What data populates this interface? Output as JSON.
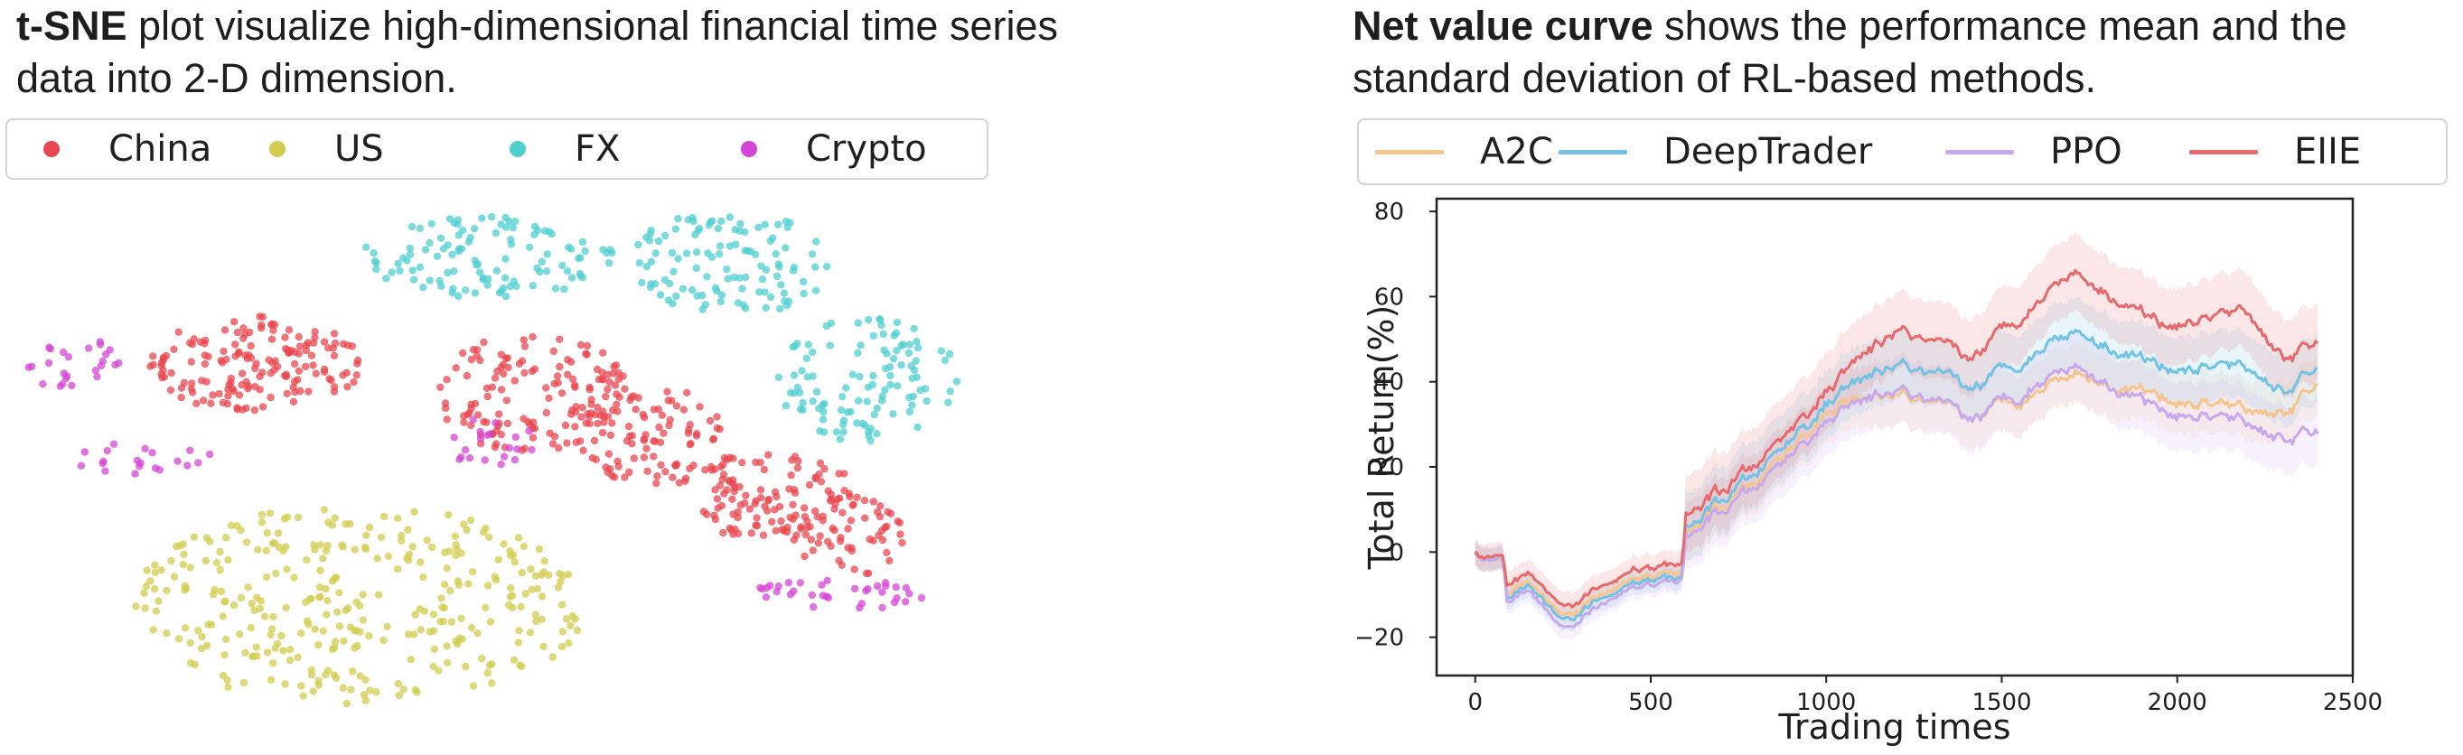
{
  "left_caption": {
    "bold": "t-SNE",
    "rest": " plot visualize high-dimensional financial time series data into 2-D dimension."
  },
  "right_caption": {
    "bold": "Net value curve",
    "rest": " shows the performance mean and the standard deviation of RL-based methods."
  },
  "chart_data": [
    {
      "type": "scatter",
      "title": "",
      "xlabel": "",
      "ylabel": "",
      "axes_visible": false,
      "legend_position": "top",
      "series": [
        {
          "name": "China",
          "color": "#e8474f",
          "clusters": [
            {
              "x": [
                160,
                400
              ],
              "y": [
                350,
                460
              ],
              "n": 160
            },
            {
              "x": [
                470,
                700
              ],
              "y": [
                370,
                500
              ],
              "n": 140
            },
            {
              "x": [
                640,
                820
              ],
              "y": [
                430,
                540
              ],
              "n": 90
            },
            {
              "x": [
                760,
                960
              ],
              "y": [
                500,
                600
              ],
              "n": 110
            },
            {
              "x": [
                880,
                1000
              ],
              "y": [
                550,
                640
              ],
              "n": 50
            }
          ]
        },
        {
          "name": "US",
          "color": "#d2cc4e",
          "clusters": [
            {
              "x": [
                140,
                650
              ],
              "y": [
                560,
                780
              ],
              "n": 330
            }
          ]
        },
        {
          "name": "FX",
          "color": "#4fcfd0",
          "clusters": [
            {
              "x": [
                400,
                680
              ],
              "y": [
                240,
                330
              ],
              "n": 110
            },
            {
              "x": [
                700,
                920
              ],
              "y": [
                230,
                350
              ],
              "n": 110
            },
            {
              "x": [
                850,
                1060
              ],
              "y": [
                350,
                490
              ],
              "n": 110
            }
          ]
        },
        {
          "name": "Crypto",
          "color": "#d444d4",
          "clusters": [
            {
              "x": [
                30,
                140
              ],
              "y": [
                370,
                440
              ],
              "n": 25
            },
            {
              "x": [
                80,
                240
              ],
              "y": [
                490,
                525
              ],
              "n": 20
            },
            {
              "x": [
                480,
                600
              ],
              "y": [
                460,
                520
              ],
              "n": 20
            },
            {
              "x": [
                830,
                1030
              ],
              "y": [
                640,
                675
              ],
              "n": 35
            }
          ]
        }
      ]
    },
    {
      "type": "line",
      "title": "",
      "xlabel": "Trading times",
      "ylabel": "Total Return(%)",
      "xlim": [
        -110,
        2500
      ],
      "ylim": [
        -29,
        83
      ],
      "xticks": [
        0,
        500,
        1000,
        1500,
        2000,
        2500
      ],
      "yticks": [
        -20,
        0,
        20,
        40,
        60,
        80
      ],
      "grid": false,
      "legend_position": "top",
      "series": [
        {
          "name": "A2C",
          "color": "#f6c58c",
          "std": 7,
          "x": [
            0,
            80,
            90,
            150,
            250,
            420,
            590,
            600,
            800,
            1000,
            1200,
            1400,
            1700,
            1950,
            2200,
            2300,
            2400
          ],
          "values": [
            0,
            -2,
            -10,
            -7,
            -15,
            -7,
            -5,
            4,
            16,
            33,
            37,
            30,
            43,
            37,
            33,
            33,
            38
          ]
        },
        {
          "name": "DeepTrader",
          "color": "#72c2e6",
          "std": 8,
          "x": [
            0,
            80,
            90,
            150,
            250,
            420,
            590,
            600,
            800,
            1000,
            1200,
            1400,
            1700,
            1950,
            2200,
            2300,
            2400
          ],
          "values": [
            0,
            -2,
            -11,
            -8,
            -16,
            -8,
            -6,
            5,
            18,
            35,
            44,
            37,
            53,
            44,
            43,
            38,
            42
          ]
        },
        {
          "name": "PPO",
          "color": "#c8a8ec",
          "std": 8,
          "x": [
            0,
            80,
            90,
            150,
            250,
            420,
            590,
            600,
            800,
            1000,
            1200,
            1400,
            1700,
            1950,
            2200,
            2300,
            2400
          ],
          "values": [
            0,
            -2,
            -12,
            -9,
            -18,
            -9,
            -7,
            3,
            15,
            31,
            38,
            30,
            45,
            34,
            30,
            27,
            27
          ]
        },
        {
          "name": "EIIE",
          "color": "#e8696b",
          "std": 9,
          "x": [
            0,
            80,
            90,
            150,
            250,
            420,
            590,
            600,
            800,
            1000,
            1200,
            1400,
            1700,
            1950,
            2200,
            2300,
            2400
          ],
          "values": [
            0,
            -1,
            -8,
            -5,
            -13,
            -5,
            -3,
            8,
            20,
            38,
            52,
            44,
            67,
            54,
            56,
            46,
            48
          ]
        }
      ]
    }
  ]
}
